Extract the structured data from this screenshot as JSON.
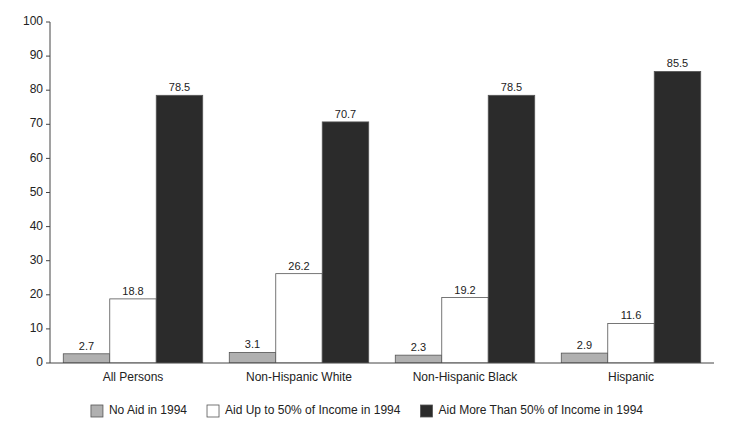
{
  "chart_data": {
    "type": "bar",
    "categories": [
      "All Persons",
      "Non-Hispanic White",
      "Non-Hispanic Black",
      "Hispanic"
    ],
    "series": [
      {
        "name": "No Aid in 1994",
        "color": "#b0b0b0",
        "values": [
          2.7,
          3.1,
          2.3,
          2.9
        ]
      },
      {
        "name": "Aid Up to 50% of Income in 1994",
        "color": "#ffffff",
        "values": [
          18.8,
          26.2,
          19.2,
          11.6
        ]
      },
      {
        "name": "Aid More Than 50% of Income in 1994",
        "color": "#2b2b2b",
        "values": [
          78.5,
          70.7,
          78.5,
          85.5
        ]
      }
    ],
    "ylim": [
      0,
      100
    ],
    "yticks": [
      0,
      10,
      20,
      30,
      40,
      50,
      60,
      70,
      80,
      90,
      100
    ],
    "grid": false,
    "legend": "bottom",
    "data_labels": true
  }
}
